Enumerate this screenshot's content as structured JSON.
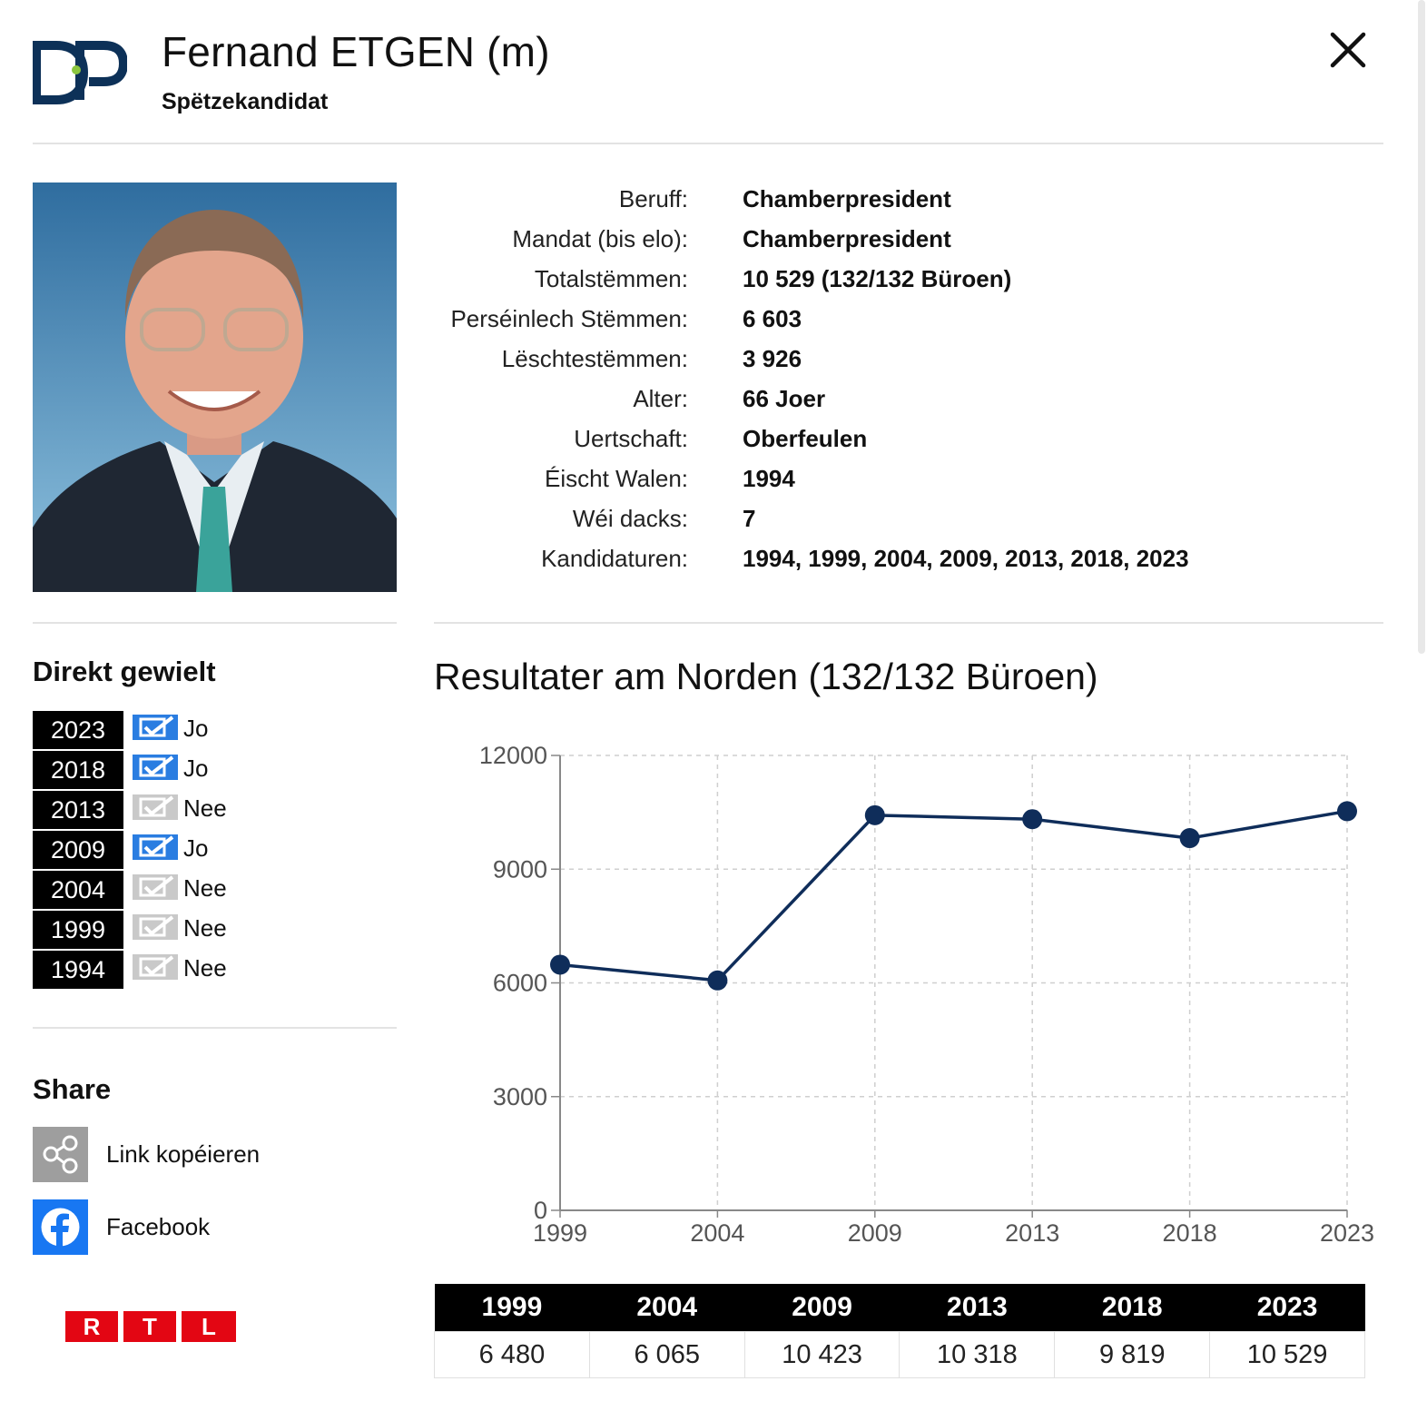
{
  "header": {
    "party_logo": "DP",
    "name": "Fernand ETGEN (m)",
    "role": "Spëtzekandidat",
    "close_icon": "close-icon"
  },
  "info": [
    {
      "label": "Beruff:",
      "value": "Chamberpresident"
    },
    {
      "label": "Mandat (bis elo):",
      "value": "Chamberpresident"
    },
    {
      "label": "Totalstëmmen:",
      "value": "10 529 (132/132 Büroen)"
    },
    {
      "label": "Perséinlech Stëmmen:",
      "value": "6 603"
    },
    {
      "label": "Lëschtestëmmen:",
      "value": "3 926"
    },
    {
      "label": "Alter:",
      "value": "66 Joer"
    },
    {
      "label": "Uertschaft:",
      "value": "Oberfeulen"
    },
    {
      "label": "Éischt Walen:",
      "value": "1994"
    },
    {
      "label": "Wéi dacks:",
      "value": "7"
    },
    {
      "label": "Kandidaturen:",
      "value": "1994, 1999, 2004, 2009, 2013, 2018, 2023"
    }
  ],
  "direct": {
    "title": "Direkt gewielt",
    "rows": [
      {
        "year": "2023",
        "answer": "Jo",
        "elected": true
      },
      {
        "year": "2018",
        "answer": "Jo",
        "elected": true
      },
      {
        "year": "2013",
        "answer": "Nee",
        "elected": false
      },
      {
        "year": "2009",
        "answer": "Jo",
        "elected": true
      },
      {
        "year": "2004",
        "answer": "Nee",
        "elected": false
      },
      {
        "year": "1999",
        "answer": "Nee",
        "elected": false
      },
      {
        "year": "1994",
        "answer": "Nee",
        "elected": false
      }
    ]
  },
  "share": {
    "title": "Share",
    "copy_label": "Link kopéieren",
    "facebook_label": "Facebook"
  },
  "brand": {
    "letters": [
      "R",
      "T",
      "L"
    ],
    "color": "#e30613"
  },
  "colors": {
    "line": "#0f2d5a",
    "blue_check": "#2a7de1",
    "grey_check": "#c9c9c9"
  },
  "chart_data": {
    "type": "line",
    "title": "Resultater am Norden (132/132 Büroen)",
    "categories": [
      "1999",
      "2004",
      "2009",
      "2013",
      "2018",
      "2023"
    ],
    "values": [
      6480,
      6065,
      10423,
      10318,
      9819,
      10529
    ],
    "yticks": [
      "0",
      "3000",
      "6000",
      "9000",
      "12000"
    ],
    "ylim": [
      0,
      12000
    ],
    "grid": true
  },
  "table": {
    "headers": [
      "1999",
      "2004",
      "2009",
      "2013",
      "2018",
      "2023"
    ],
    "values": [
      "6 480",
      "6 065",
      "10 423",
      "10 318",
      "9 819",
      "10 529"
    ]
  }
}
